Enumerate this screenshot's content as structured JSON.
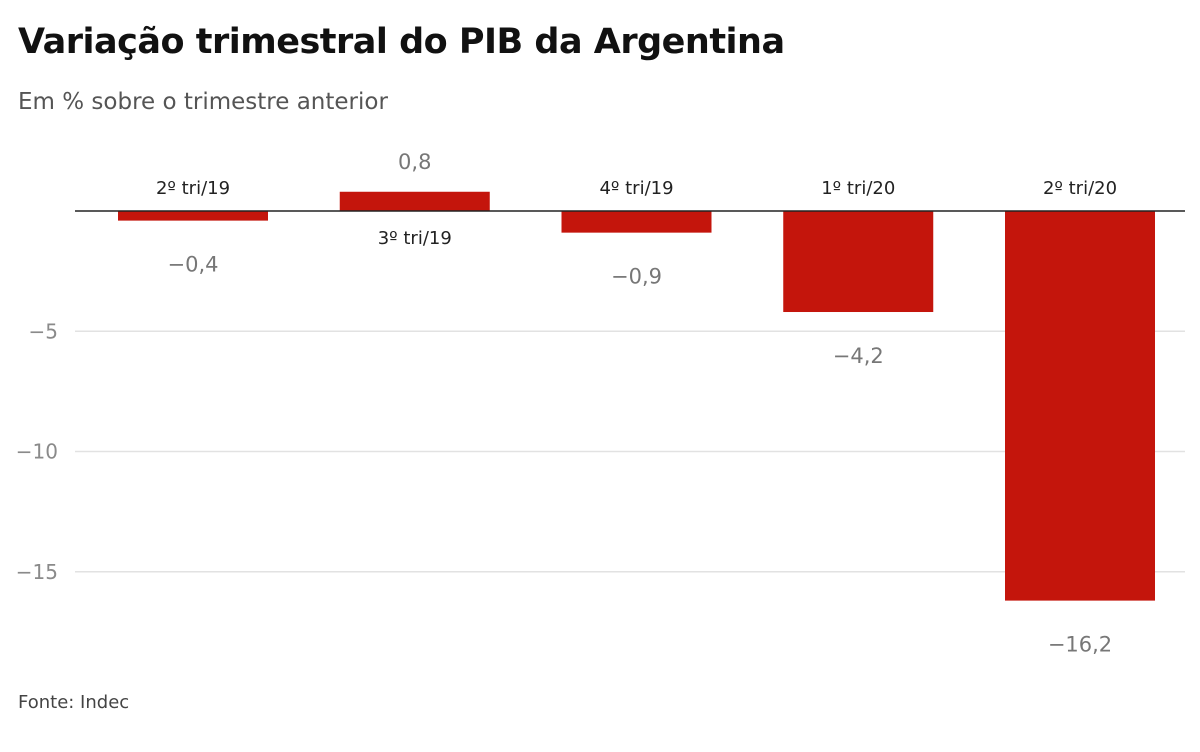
{
  "title": "Variação trimestral do PIB da Argentina",
  "subtitle": "Em % sobre o trimestre anterior",
  "source": "Fonte: Indec",
  "chart_data": {
    "type": "bar",
    "title": "Variação trimestral do PIB da Argentina",
    "subtitle": "Em % sobre o trimestre anterior",
    "categories": [
      "2º tri/19",
      "3º tri/19",
      "4º tri/19",
      "1º tri/20",
      "2º tri/20"
    ],
    "values": [
      -0.4,
      0.8,
      -0.9,
      -4.2,
      -16.2
    ],
    "value_labels": [
      "−0,4",
      "0,8",
      "−0,9",
      "−4,2",
      "−16,2"
    ],
    "yticks": [
      -5,
      -10,
      -15
    ],
    "ytick_labels": [
      "−5",
      "−10",
      "−15"
    ],
    "ylim": [
      -18,
      1.5
    ],
    "grid": true,
    "bar_color": "#c4150c"
  }
}
